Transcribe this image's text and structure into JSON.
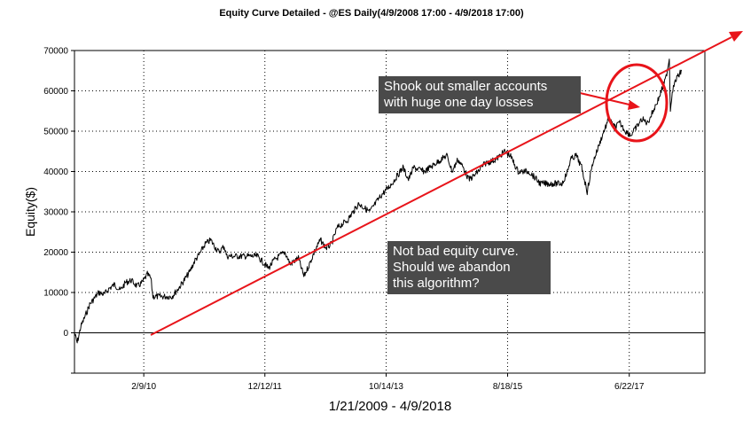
{
  "chart_data": {
    "type": "line",
    "title": "Equity Curve Detailed - @ES Daily(4/9/2008 17:00 - 4/9/2018 17:00)",
    "xlabel": "1/21/2009 - 4/9/2018",
    "ylabel": "Equity($)",
    "ylim": [
      -10000,
      70000
    ],
    "yticks": [
      0,
      10000,
      20000,
      30000,
      40000,
      50000,
      60000,
      70000
    ],
    "xlim": [
      "2009-01-21",
      "2018-08-15"
    ],
    "xticks": [
      {
        "label": "2/9/10",
        "date": "2010-02-09"
      },
      {
        "label": "12/12/11",
        "date": "2011-12-12"
      },
      {
        "label": "10/14/13",
        "date": "2013-10-14"
      },
      {
        "label": "8/18/15",
        "date": "2015-08-18"
      },
      {
        "label": "6/22/17",
        "date": "2017-06-22"
      }
    ],
    "grid": true,
    "series": [
      {
        "color": "#000000",
        "points": [
          [
            "2009-01-21",
            0
          ],
          [
            "2009-02-05",
            -2500
          ],
          [
            "2009-02-25",
            1500
          ],
          [
            "2009-03-20",
            4000
          ],
          [
            "2009-04-15",
            7000
          ],
          [
            "2009-05-10",
            8500
          ],
          [
            "2009-06-05",
            10000
          ],
          [
            "2009-07-05",
            9500
          ],
          [
            "2009-08-01",
            11000
          ],
          [
            "2009-09-01",
            12000
          ],
          [
            "2009-10-01",
            10500
          ],
          [
            "2009-11-01",
            12500
          ],
          [
            "2009-12-01",
            13000
          ],
          [
            "2010-01-05",
            11500
          ],
          [
            "2010-02-01",
            12500
          ],
          [
            "2010-03-01",
            14500
          ],
          [
            "2010-03-20",
            13500
          ],
          [
            "2010-04-01",
            9000
          ],
          [
            "2010-05-01",
            9000
          ],
          [
            "2010-07-15",
            9000
          ],
          [
            "2010-08-20",
            11000
          ],
          [
            "2010-09-20",
            13000
          ],
          [
            "2010-10-20",
            15000
          ],
          [
            "2010-11-20",
            18000
          ],
          [
            "2010-12-15",
            19500
          ],
          [
            "2011-01-15",
            22000
          ],
          [
            "2011-02-15",
            23000
          ],
          [
            "2011-03-15",
            21000
          ],
          [
            "2011-04-01",
            20000
          ],
          [
            "2011-04-30",
            21500
          ],
          [
            "2011-05-15",
            19000
          ],
          [
            "2011-08-01",
            19000
          ],
          [
            "2011-11-01",
            19000
          ],
          [
            "2012-01-01",
            16000
          ],
          [
            "2012-02-01",
            18000
          ],
          [
            "2012-03-01",
            19000
          ],
          [
            "2012-04-01",
            20000
          ],
          [
            "2012-05-01",
            17000
          ],
          [
            "2012-06-15",
            18500
          ],
          [
            "2012-07-15",
            14000
          ],
          [
            "2012-08-15",
            17000
          ],
          [
            "2012-09-15",
            20500
          ],
          [
            "2012-10-15",
            23000
          ],
          [
            "2012-11-15",
            21000
          ],
          [
            "2012-12-15",
            22000
          ],
          [
            "2013-01-15",
            26000
          ],
          [
            "2013-03-15",
            28000
          ],
          [
            "2013-05-15",
            32000
          ],
          [
            "2013-07-15",
            30000
          ],
          [
            "2013-09-15",
            34000
          ],
          [
            "2013-11-15",
            37000
          ],
          [
            "2014-01-15",
            41000
          ],
          [
            "2014-02-15",
            38000
          ],
          [
            "2014-03-15",
            41000
          ],
          [
            "2014-05-15",
            40000
          ],
          [
            "2014-07-15",
            42000
          ],
          [
            "2014-09-15",
            44000
          ],
          [
            "2014-10-15",
            40000
          ],
          [
            "2014-11-15",
            43000
          ],
          [
            "2014-12-15",
            41000
          ],
          [
            "2015-01-15",
            38000
          ],
          [
            "2015-02-15",
            39000
          ],
          [
            "2015-04-15",
            42000
          ],
          [
            "2015-06-15",
            43000
          ],
          [
            "2015-08-01",
            45000
          ],
          [
            "2015-09-01",
            44000
          ],
          [
            "2015-10-15",
            40000
          ],
          [
            "2015-12-15",
            40000
          ],
          [
            "2016-02-15",
            37000
          ],
          [
            "2016-03-15",
            37000
          ],
          [
            "2016-06-15",
            37000
          ],
          [
            "2016-07-15",
            40000
          ],
          [
            "2016-08-01",
            43000
          ],
          [
            "2016-09-01",
            44000
          ],
          [
            "2016-10-01",
            41000
          ],
          [
            "2016-11-01",
            35000
          ],
          [
            "2016-12-01",
            42000
          ],
          [
            "2017-01-01",
            46000
          ],
          [
            "2017-02-01",
            50000
          ],
          [
            "2017-03-01",
            53000
          ],
          [
            "2017-04-01",
            51000
          ],
          [
            "2017-05-01",
            52000
          ],
          [
            "2017-06-01",
            50000
          ],
          [
            "2017-07-01",
            49000
          ],
          [
            "2017-08-01",
            51000
          ],
          [
            "2017-09-01",
            53000
          ],
          [
            "2017-10-01",
            52000
          ],
          [
            "2017-11-01",
            55000
          ],
          [
            "2017-12-01",
            58000
          ],
          [
            "2018-01-10",
            63000
          ],
          [
            "2018-01-30",
            68000
          ],
          [
            "2018-02-05",
            55000
          ],
          [
            "2018-02-15",
            60000
          ],
          [
            "2018-03-10",
            63000
          ],
          [
            "2018-04-09",
            65000
          ]
        ]
      }
    ],
    "annotations": [
      {
        "lines": [
          "Shook out smaller accounts",
          "with huge one day losses"
        ]
      },
      {
        "lines": [
          "Not bad equity curve.",
          "Should we abandon",
          "this algorithm?"
        ]
      }
    ],
    "overlay_color": "#e8141a"
  }
}
